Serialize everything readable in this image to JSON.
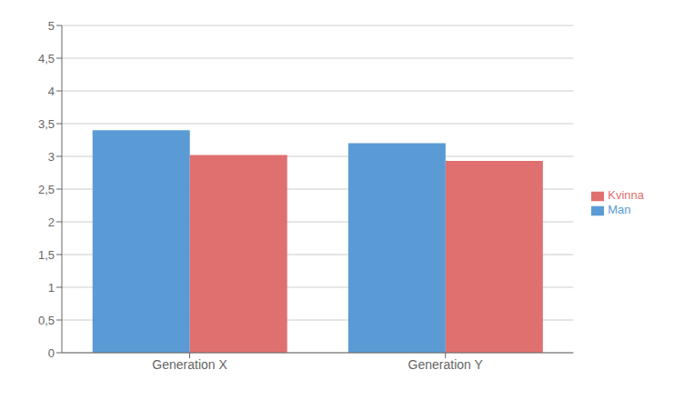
{
  "chart_data": {
    "type": "bar",
    "categories": [
      "Generation X",
      "Generation Y"
    ],
    "series": [
      {
        "name": "Man",
        "color": "#5B9BD5",
        "values": [
          3.4,
          3.2
        ]
      },
      {
        "name": "Kvinna",
        "color": "#E07070",
        "values": [
          3.02,
          2.93
        ]
      }
    ],
    "ylim": [
      0,
      5
    ],
    "yticks": [
      0,
      {
        "value": 0.5,
        "label": "0,5"
      },
      1,
      {
        "value": 1.5,
        "label": "1,5"
      },
      2,
      {
        "value": 2.5,
        "label": "2,5"
      },
      3,
      {
        "value": 3.5,
        "label": "3,5"
      },
      4,
      {
        "value": 4.5,
        "label": "4,5"
      },
      5
    ],
    "grid": true,
    "legend": "right"
  }
}
